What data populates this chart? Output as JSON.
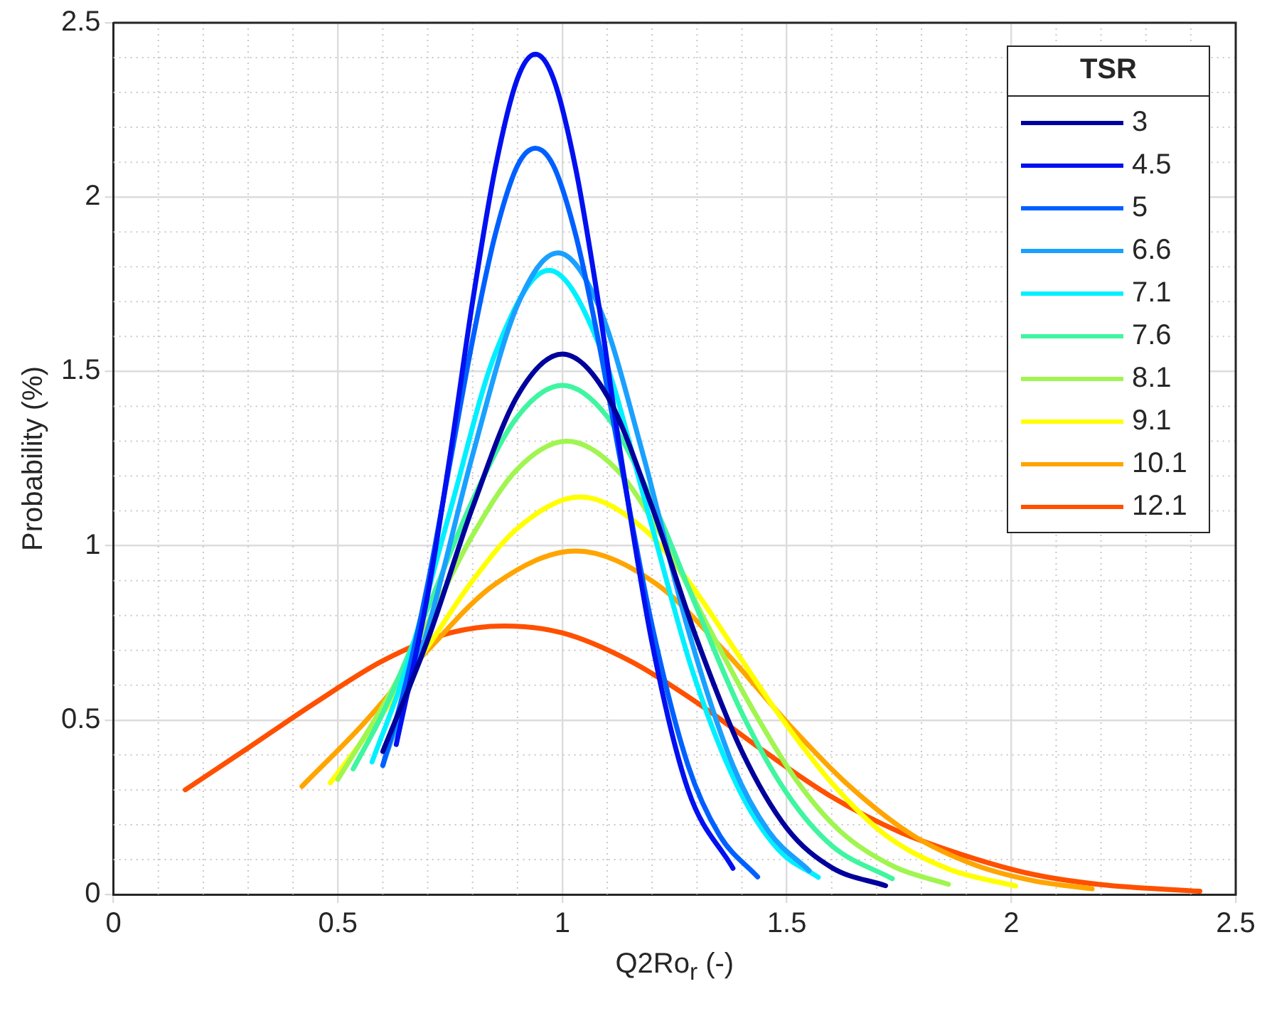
{
  "chart_data": {
    "type": "line",
    "xlabel": "Q2Ro$_{r}$ (-)",
    "ylabel": "Probability (%)",
    "legend_title": "TSR",
    "legend": "top right",
    "grid": true,
    "marker": "none",
    "line_style": "solid",
    "xlim": [
      0,
      2.5
    ],
    "xticks": [
      0,
      0.5,
      1,
      1.5,
      2,
      2.5
    ],
    "ylim": [
      0,
      2.5
    ],
    "yticks": [
      0,
      0.5,
      1,
      1.5,
      2,
      2.5
    ],
    "series": [
      {
        "name": "3",
        "color": "#00009c",
        "x": [
          0.6,
          0.7,
          0.8,
          0.9,
          1.0,
          1.1,
          1.2,
          1.3,
          1.4,
          1.5,
          1.6,
          1.72
        ],
        "values": [
          0.41,
          0.73,
          1.11,
          1.43,
          1.55,
          1.43,
          1.11,
          0.73,
          0.41,
          0.19,
          0.077,
          0.025
        ]
      },
      {
        "name": "4.5",
        "color": "#0010f0",
        "x": [
          0.63,
          0.7,
          0.75,
          0.8,
          0.85,
          0.9,
          0.94,
          0.98,
          1.03,
          1.08,
          1.13,
          1.2,
          1.28,
          1.38
        ],
        "values": [
          0.43,
          0.86,
          1.26,
          1.7,
          2.08,
          2.34,
          2.41,
          2.34,
          2.08,
          1.7,
          1.26,
          0.72,
          0.3,
          0.075
        ]
      },
      {
        "name": "5",
        "color": "#0060ff",
        "x": [
          0.6,
          0.65,
          0.7,
          0.75,
          0.8,
          0.85,
          0.9,
          0.94,
          0.98,
          1.03,
          1.08,
          1.13,
          1.2,
          1.28,
          1.35,
          1.435
        ],
        "values": [
          0.37,
          0.6,
          0.89,
          1.24,
          1.59,
          1.89,
          2.09,
          2.14,
          2.09,
          1.89,
          1.59,
          1.24,
          0.77,
          0.37,
          0.17,
          0.05
        ]
      },
      {
        "name": "6.6",
        "color": "#1aa0ff",
        "x": [
          0.6,
          0.7,
          0.8,
          0.9,
          0.99,
          1.08,
          1.18,
          1.28,
          1.38,
          1.46,
          1.55
        ],
        "values": [
          0.37,
          0.76,
          1.26,
          1.69,
          1.84,
          1.69,
          1.26,
          0.76,
          0.37,
          0.18,
          0.068
        ]
      },
      {
        "name": "7.1",
        "color": "#00f0ff",
        "x": [
          0.576,
          0.65,
          0.75,
          0.85,
          0.97,
          1.09,
          1.19,
          1.29,
          1.39,
          1.48,
          1.57
        ],
        "values": [
          0.38,
          0.64,
          1.1,
          1.55,
          1.79,
          1.55,
          1.1,
          0.64,
          0.31,
          0.13,
          0.049
        ]
      },
      {
        "name": "7.6",
        "color": "#40f5a0",
        "x": [
          0.534,
          0.6,
          0.7,
          0.8,
          0.9,
          1.0,
          1.1,
          1.2,
          1.3,
          1.4,
          1.5,
          1.6,
          1.735
        ],
        "values": [
          0.36,
          0.52,
          0.82,
          1.13,
          1.37,
          1.46,
          1.37,
          1.13,
          0.82,
          0.52,
          0.29,
          0.14,
          0.045
        ]
      },
      {
        "name": "8.1",
        "color": "#a0f550",
        "x": [
          0.5,
          0.6,
          0.7,
          0.8,
          0.9,
          1.01,
          1.12,
          1.22,
          1.32,
          1.42,
          1.52,
          1.62,
          1.74,
          1.86
        ],
        "values": [
          0.33,
          0.54,
          0.78,
          1.03,
          1.22,
          1.3,
          1.22,
          1.03,
          0.78,
          0.54,
          0.33,
          0.18,
          0.079,
          0.029
        ]
      },
      {
        "name": "9.1",
        "color": "#ffff00",
        "x": [
          0.483,
          0.6,
          0.7,
          0.8,
          0.9,
          1.04,
          1.18,
          1.28,
          1.38,
          1.48,
          1.6,
          1.72,
          1.86,
          2.01
        ],
        "values": [
          0.32,
          0.52,
          0.71,
          0.9,
          1.05,
          1.14,
          1.05,
          0.9,
          0.71,
          0.52,
          0.32,
          0.17,
          0.073,
          0.024
        ]
      },
      {
        "name": "10.1",
        "color": "#ffa500",
        "x": [
          0.42,
          0.55,
          0.7,
          0.85,
          1.03,
          1.21,
          1.36,
          1.51,
          1.64,
          1.78,
          1.92,
          2.05,
          2.18
        ],
        "values": [
          0.31,
          0.48,
          0.7,
          0.89,
          0.985,
          0.89,
          0.7,
          0.48,
          0.31,
          0.17,
          0.084,
          0.039,
          0.016
        ]
      },
      {
        "name": "12.1",
        "color": "#ff5000",
        "x": [
          0.16,
          0.3,
          0.45,
          0.6,
          0.75,
          0.87,
          1.0,
          1.15,
          1.3,
          1.45,
          1.6,
          1.75,
          1.9,
          2.05,
          2.2,
          2.42
        ],
        "values": [
          0.3,
          0.42,
          0.55,
          0.67,
          0.75,
          0.77,
          0.75,
          0.67,
          0.55,
          0.41,
          0.28,
          0.18,
          0.11,
          0.057,
          0.028,
          0.009
        ]
      }
    ]
  }
}
